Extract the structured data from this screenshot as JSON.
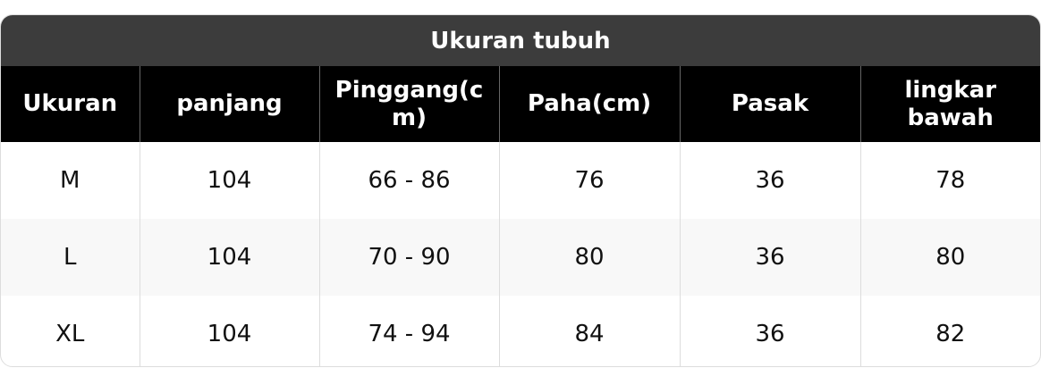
{
  "title": "Ukuran tubuh",
  "headers": [
    "Ukuran",
    "panjang",
    "Pinggang(cm)",
    "Paha(cm)",
    "Pasak",
    "lingkar bawah"
  ],
  "rows": [
    [
      "M",
      "104",
      "66 - 86",
      "76",
      "36",
      "78"
    ],
    [
      "L",
      "104",
      "70 - 90",
      "80",
      "36",
      "80"
    ],
    [
      "XL",
      "104",
      "74 - 94",
      "84",
      "36",
      "82"
    ]
  ]
}
